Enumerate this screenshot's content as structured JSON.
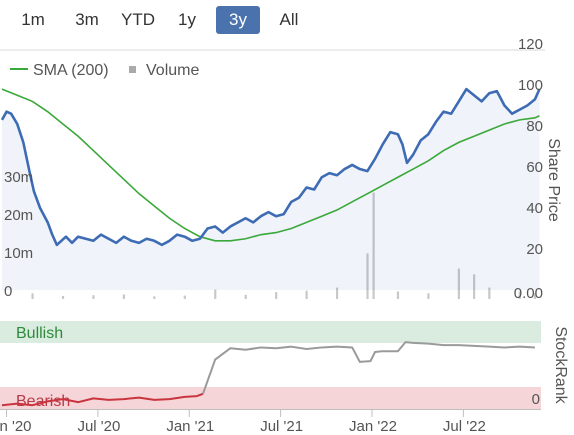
{
  "range_selector": {
    "buttons": [
      "1m",
      "3m",
      "YTD",
      "1y",
      "3y",
      "All"
    ],
    "active": "3y"
  },
  "colors": {
    "accent": "#4a73ad",
    "price_line": "#3d6cb4",
    "sma_line": "#3aa83a",
    "volume_bar": "#c8c8c8",
    "bullish_band": "#d9ecdf",
    "bearish_band": "#f6d5d8",
    "stockrank_bear": "#c9343f",
    "stockrank_bull": "#9a9a9a"
  },
  "chart_data": [
    {
      "type": "line",
      "legend": [
        {
          "name": "SMA (200)",
          "symbol": "line"
        },
        {
          "name": "Volume",
          "symbol": "square"
        }
      ],
      "ylabel": "Share Price",
      "ylim": [
        0,
        120
      ],
      "y_ticks": [
        20,
        40,
        60,
        80,
        100,
        120
      ],
      "y_tick_labels": [
        "20",
        "40",
        "60",
        "80",
        "100",
        "120"
      ],
      "volume_ticks": [
        {
          "value": 0,
          "label": "0"
        },
        {
          "value": 10000000,
          "label": "10m"
        },
        {
          "value": 20000000,
          "label": "20m"
        },
        {
          "value": 30000000,
          "label": "30m"
        }
      ],
      "volume_zero_label": "0.00",
      "xlim": [
        0,
        35.4
      ],
      "x_ticks": [
        0.3,
        6.3,
        12.3,
        18.3,
        24.3,
        30.3
      ],
      "x_tick_labels": [
        "Jan '20",
        "Jul '20",
        "Jan '21",
        "Jul '21",
        "Jan '22",
        "Jul '22"
      ],
      "series": [
        {
          "name": "Share Price",
          "points": [
            [
              0,
              83
            ],
            [
              0.3,
              87
            ],
            [
              0.6,
              86
            ],
            [
              1.0,
              81
            ],
            [
              1.4,
              72
            ],
            [
              1.8,
              58
            ],
            [
              2.1,
              48
            ],
            [
              2.5,
              40
            ],
            [
              3.0,
              33
            ],
            [
              3.3,
              27
            ],
            [
              3.6,
              22
            ],
            [
              3.9,
              24
            ],
            [
              4.2,
              26
            ],
            [
              4.6,
              23
            ],
            [
              5.0,
              26
            ],
            [
              5.5,
              25
            ],
            [
              6.0,
              24
            ],
            [
              6.5,
              27
            ],
            [
              7.0,
              25
            ],
            [
              7.5,
              23
            ],
            [
              8.0,
              26
            ],
            [
              8.5,
              24
            ],
            [
              9.0,
              23
            ],
            [
              9.5,
              25
            ],
            [
              10.0,
              24
            ],
            [
              10.5,
              22
            ],
            [
              11.0,
              24
            ],
            [
              11.5,
              27
            ],
            [
              12.0,
              26
            ],
            [
              12.5,
              24
            ],
            [
              13.0,
              25
            ],
            [
              13.5,
              30
            ],
            [
              14.0,
              31
            ],
            [
              14.5,
              28
            ],
            [
              15.0,
              31
            ],
            [
              15.5,
              33
            ],
            [
              16.0,
              35
            ],
            [
              16.5,
              33
            ],
            [
              17.0,
              36
            ],
            [
              17.5,
              38
            ],
            [
              18.0,
              36
            ],
            [
              18.5,
              37
            ],
            [
              19.0,
              43
            ],
            [
              19.5,
              45
            ],
            [
              20.0,
              50
            ],
            [
              20.5,
              49
            ],
            [
              21.0,
              55
            ],
            [
              21.5,
              57
            ],
            [
              22.0,
              56
            ],
            [
              22.5,
              59
            ],
            [
              23.0,
              61
            ],
            [
              23.5,
              59
            ],
            [
              24.0,
              58
            ],
            [
              24.5,
              64
            ],
            [
              25.0,
              71
            ],
            [
              25.5,
              77
            ],
            [
              26.0,
              76
            ],
            [
              26.3,
              71
            ],
            [
              26.6,
              62
            ],
            [
              27.0,
              66
            ],
            [
              27.5,
              73
            ],
            [
              28.0,
              76
            ],
            [
              28.5,
              82
            ],
            [
              29.0,
              87
            ],
            [
              29.5,
              86
            ],
            [
              30.0,
              92
            ],
            [
              30.5,
              98
            ],
            [
              31.0,
              95
            ],
            [
              31.5,
              92
            ],
            [
              32.0,
              96
            ],
            [
              32.5,
              97
            ],
            [
              33.0,
              90
            ],
            [
              33.5,
              86
            ],
            [
              34.0,
              88
            ],
            [
              34.5,
              90
            ],
            [
              35.0,
              93
            ],
            [
              35.3,
              98
            ]
          ]
        },
        {
          "name": "SMA (200)",
          "points": [
            [
              0,
              98
            ],
            [
              1,
              95
            ],
            [
              2,
              92
            ],
            [
              3,
              87
            ],
            [
              4,
              81
            ],
            [
              5,
              75
            ],
            [
              6,
              68
            ],
            [
              7,
              61
            ],
            [
              8,
              54
            ],
            [
              9,
              47
            ],
            [
              10,
              41
            ],
            [
              11,
              35
            ],
            [
              12,
              30
            ],
            [
              13,
              26
            ],
            [
              14,
              24
            ],
            [
              15,
              24
            ],
            [
              16,
              25
            ],
            [
              17,
              27
            ],
            [
              18,
              28
            ],
            [
              19,
              30
            ],
            [
              20,
              33
            ],
            [
              21,
              36
            ],
            [
              22,
              39
            ],
            [
              23,
              43
            ],
            [
              24,
              47
            ],
            [
              25,
              51
            ],
            [
              26,
              55
            ],
            [
              27,
              59
            ],
            [
              28,
              63
            ],
            [
              29,
              68
            ],
            [
              30,
              72
            ],
            [
              31,
              75
            ],
            [
              32,
              78
            ],
            [
              33,
              81
            ],
            [
              34,
              83
            ],
            [
              35,
              84
            ],
            [
              35.3,
              85
            ]
          ]
        },
        {
          "name": "Volume",
          "points": [
            [
              2.0,
              1500000
            ],
            [
              4.0,
              800000
            ],
            [
              6.0,
              1000000
            ],
            [
              8.0,
              1200000
            ],
            [
              10.0,
              700000
            ],
            [
              12.0,
              900000
            ],
            [
              14.0,
              2500000
            ],
            [
              16.0,
              1100000
            ],
            [
              18.0,
              1800000
            ],
            [
              20.0,
              2200000
            ],
            [
              22.0,
              3000000
            ],
            [
              24.0,
              12000000
            ],
            [
              24.4,
              28000000
            ],
            [
              26.0,
              2000000
            ],
            [
              28.0,
              1500000
            ],
            [
              30.0,
              8000000
            ],
            [
              31.0,
              6500000
            ],
            [
              32.0,
              3000000
            ],
            [
              34.0,
              2000000
            ],
            [
              35.0,
              1500000
            ]
          ]
        }
      ]
    },
    {
      "type": "line",
      "ylabel": "StockRank",
      "ylim": [
        0,
        100
      ],
      "y_tick_labels": [
        "0"
      ],
      "bands": [
        "Bullish",
        "Bearish"
      ],
      "xlim": [
        0,
        35.4
      ],
      "series": [
        {
          "name": "StockRank",
          "points": [
            [
              0,
              5
            ],
            [
              1,
              7
            ],
            [
              2,
              5
            ],
            [
              3,
              10
            ],
            [
              4,
              13
            ],
            [
              5,
              9
            ],
            [
              6,
              14
            ],
            [
              7,
              12
            ],
            [
              8,
              13
            ],
            [
              9,
              15
            ],
            [
              10,
              12
            ],
            [
              11,
              13
            ],
            [
              12,
              16
            ],
            [
              12.8,
              17
            ],
            [
              13.2,
              20
            ],
            [
              14,
              65
            ],
            [
              15,
              80
            ],
            [
              16,
              78
            ],
            [
              17,
              81
            ],
            [
              18,
              80
            ],
            [
              19,
              82
            ],
            [
              20,
              79
            ],
            [
              21,
              81
            ],
            [
              22,
              82
            ],
            [
              23,
              81
            ],
            [
              23.5,
              62
            ],
            [
              24.2,
              63
            ],
            [
              24.5,
              75
            ],
            [
              25,
              76
            ],
            [
              26,
              76
            ],
            [
              26.5,
              88
            ],
            [
              27,
              87
            ],
            [
              28,
              86
            ],
            [
              29,
              84
            ],
            [
              30,
              84
            ],
            [
              31,
              83
            ],
            [
              32,
              82
            ],
            [
              33,
              81
            ],
            [
              34,
              82
            ],
            [
              35,
              81
            ]
          ]
        }
      ]
    }
  ]
}
